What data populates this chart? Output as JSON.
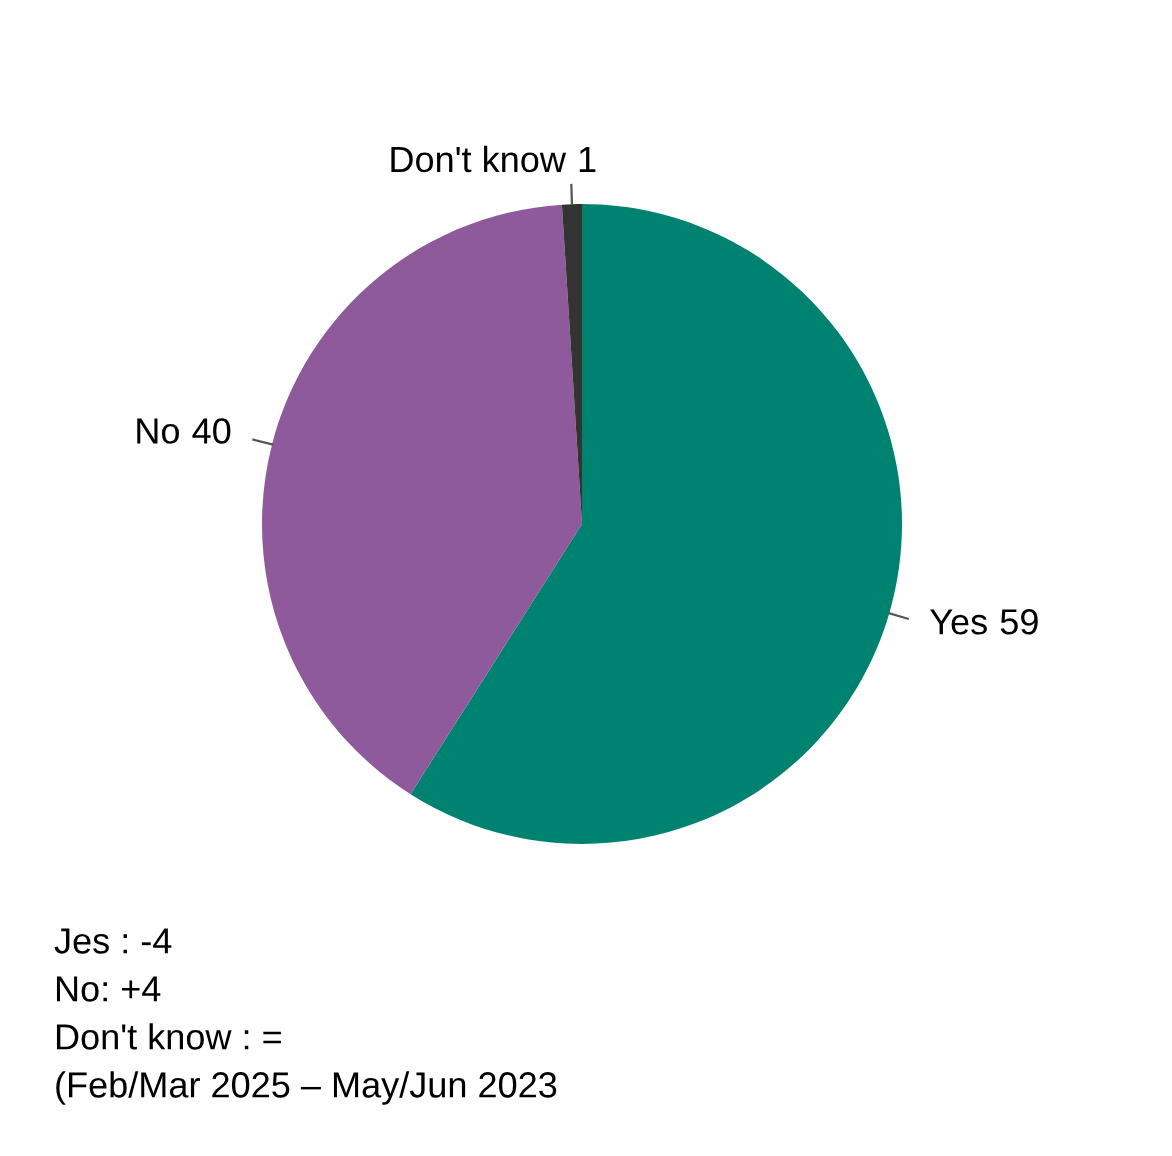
{
  "chart_data": {
    "type": "pie",
    "categories": [
      "Yes",
      "No",
      "Don't know"
    ],
    "values": [
      59,
      40,
      1
    ],
    "colors": [
      "#008270",
      "#8e5a9b",
      "#333333"
    ],
    "data_labels": true,
    "legend": false,
    "annotations": [
      "Jes : -4",
      "No: +4",
      "Don't know : =",
      "(Feb/Mar 2025 – May/Jun 2023"
    ]
  }
}
